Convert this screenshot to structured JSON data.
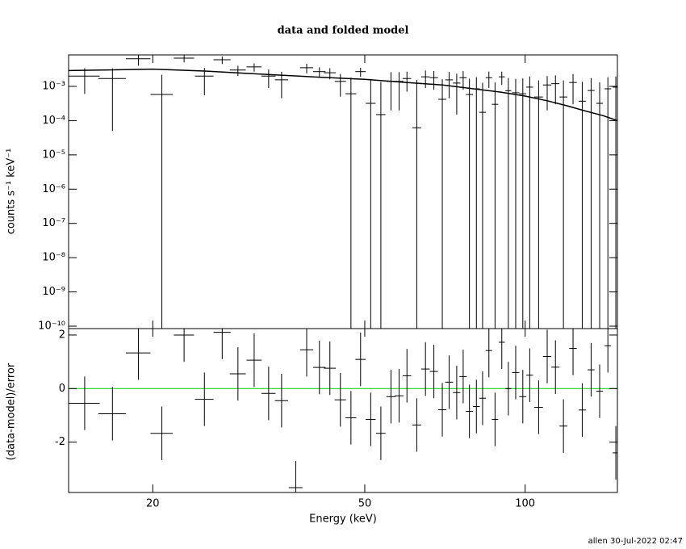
{
  "title": "data and folded model",
  "footer": "allen 30-Jul-2022 02:47",
  "chart_data": [
    {
      "type": "errorbar",
      "ylabel": "counts s⁻¹ keV⁻¹",
      "xlog": true,
      "ylog": true,
      "xlim": [
        13.9,
        149
      ],
      "xticks": [
        20,
        50,
        100
      ],
      "ylim": [
        8.5e-11,
        0.0083
      ],
      "yticks": [
        {
          "value": 0.001,
          "label": "10⁻³"
        },
        {
          "value": 0.0001,
          "label": "10⁻⁴"
        },
        {
          "value": 1e-05,
          "label": "10⁻⁵"
        },
        {
          "value": 1e-06,
          "label": "10⁻⁶"
        },
        {
          "value": 1e-07,
          "label": "10⁻⁷"
        },
        {
          "value": 1e-08,
          "label": "10⁻⁸"
        },
        {
          "value": 1e-09,
          "label": "10⁻⁹"
        },
        {
          "value": 1e-10,
          "label": "10⁻¹⁰"
        }
      ],
      "series": [
        {
          "color": "#000000",
          "x": [
            14.9,
            16.8,
            18.8,
            20.8,
            22.9,
            25.0,
            27.0,
            28.9,
            31.0,
            33.0,
            34.9,
            37.1,
            38.9,
            41.1,
            43.0,
            45.0,
            47.1,
            49.1,
            51.3,
            53.6,
            56.0,
            58.0,
            60.0,
            62.6,
            65.0,
            67.4,
            69.9,
            72.0,
            74.4,
            76.5,
            78.6,
            81.0,
            83.2,
            85.5,
            87.8,
            90.4,
            93.0,
            96.0,
            99.0,
            102,
            106,
            110,
            114,
            118,
            123,
            128,
            133,
            138,
            143,
            148
          ],
          "x_err": [
            1.0,
            1.0,
            1.0,
            1.0,
            1.0,
            1.0,
            1.0,
            1.0,
            1.0,
            1.0,
            1.0,
            1.1,
            1.1,
            1.1,
            1.1,
            1.1,
            1.1,
            1.1,
            1.1,
            1.1,
            1.1,
            1.1,
            1.1,
            1.2,
            1.2,
            1.2,
            1.2,
            1.2,
            1.2,
            1.2,
            1.2,
            1.2,
            1.2,
            1.2,
            1.2,
            1.2,
            1.2,
            1.5,
            1.5,
            1.5,
            2.0,
            2.0,
            2.0,
            2.0,
            2.0,
            2.0,
            2.0,
            2.0,
            2.0,
            2.0
          ],
          "values": [
            0.002,
            0.0017,
            0.0064,
            0.00058,
            0.0067,
            0.002,
            0.006,
            0.003,
            0.0037,
            0.002,
            0.00155,
            null,
            0.0035,
            0.0027,
            0.0025,
            0.0014,
            0.00061,
            0.0027,
            0.00032,
            0.00015,
            0.0014,
            0.0014,
            0.0017,
            6.2e-05,
            0.0019,
            0.0018,
            0.00042,
            0.00155,
            0.00125,
            0.0018,
            0.00058,
            0.00085,
            0.000175,
            0.0018,
            0.0003,
            0.0019,
            0.00075,
            0.00065,
            0.00061,
            0.00095,
            0.00049,
            0.0011,
            0.0012,
            0.00049,
            0.0013,
            0.00037,
            0.00076,
            0.00032,
            0.00085,
            0.00095
          ],
          "errors": [
            0.0014,
            0.00165,
            0.0024,
            0.0016,
            0.0017,
            0.00145,
            0.0015,
            0.001,
            0.001,
            0.0011,
            0.0011,
            null,
            0.0011,
            0.0009,
            0.0009,
            0.0009,
            0.0012,
            0.0008,
            0.0013,
            0.0012,
            0.0012,
            0.0012,
            0.001,
            0.0015,
            0.001,
            0.001,
            0.0012,
            0.0011,
            0.0011,
            0.001,
            0.0011,
            0.001,
            0.0011,
            0.0009,
            0.001,
            0.0008,
            0.001,
            0.001,
            0.0011,
            0.001,
            0.001,
            0.0009,
            0.0009,
            0.001,
            0.001,
            0.001,
            0.001,
            0.001,
            0.001,
            0.001
          ]
        }
      ],
      "model": {
        "color": "#000000",
        "x": [
          13.9,
          16,
          20,
          25,
          30,
          40,
          50,
          60,
          70,
          80,
          90,
          100,
          110,
          120,
          130,
          140,
          149
        ],
        "values": [
          0.0029,
          0.003,
          0.0032,
          0.0028,
          0.0024,
          0.0019,
          0.0016,
          0.0013,
          0.0011,
          0.00085,
          0.00068,
          0.00052,
          0.00038,
          0.00027,
          0.00019,
          0.00014,
          0.0001
        ]
      }
    },
    {
      "type": "residual",
      "ylabel": "(data-model)/error",
      "xlabel": "Energy (keV)",
      "xlog": true,
      "xlim": [
        13.9,
        149
      ],
      "xticks": [
        20,
        50,
        100
      ],
      "ylim": [
        -3.88,
        2.24
      ],
      "yticks": [
        -2,
        0,
        2
      ],
      "reference_line": 0,
      "reference_color": "#00cc00",
      "series": [
        {
          "color": "#000000",
          "x": [
            14.9,
            16.8,
            18.8,
            20.8,
            22.9,
            25.0,
            27.0,
            28.9,
            31.0,
            33.0,
            34.9,
            37.1,
            38.9,
            41.1,
            43.0,
            45.0,
            47.1,
            49.1,
            51.3,
            53.6,
            56.0,
            58.0,
            60.0,
            62.6,
            65.0,
            67.4,
            69.9,
            72.0,
            74.4,
            76.5,
            78.6,
            81.0,
            83.2,
            85.5,
            87.8,
            90.4,
            93.0,
            96.0,
            99.0,
            102,
            106,
            110,
            114,
            118,
            123,
            128,
            133,
            138,
            143,
            148
          ],
          "x_err": [
            1.0,
            1.0,
            1.0,
            1.0,
            1.0,
            1.0,
            1.0,
            1.0,
            1.0,
            1.0,
            1.0,
            1.1,
            1.1,
            1.1,
            1.1,
            1.1,
            1.1,
            1.1,
            1.1,
            1.1,
            1.1,
            1.1,
            1.1,
            1.2,
            1.2,
            1.2,
            1.2,
            1.2,
            1.2,
            1.2,
            1.2,
            1.2,
            1.2,
            1.2,
            1.2,
            1.2,
            1.2,
            1.5,
            1.5,
            1.5,
            2.0,
            2.0,
            2.0,
            2.0,
            2.0,
            2.0,
            2.0,
            2.0,
            2.0,
            2.0
          ],
          "values": [
            -0.55,
            -0.94,
            1.33,
            -1.67,
            2.0,
            -0.4,
            2.1,
            0.55,
            1.06,
            -0.18,
            -0.45,
            -3.7,
            1.45,
            0.79,
            0.76,
            -0.42,
            -1.09,
            1.09,
            -1.15,
            -1.67,
            -0.3,
            -0.27,
            0.48,
            -1.36,
            0.73,
            0.64,
            -0.79,
            0.24,
            -0.15,
            0.45,
            -0.85,
            -0.67,
            -0.36,
            1.42,
            -1.15,
            1.73,
            0,
            0.6,
            -0.3,
            0.5,
            -0.7,
            1.2,
            0.8,
            -1.4,
            1.5,
            -0.8,
            0.7,
            -0.1,
            1.6,
            -2.4
          ],
          "errors": [
            1,
            1,
            1,
            1,
            1,
            1,
            1,
            1,
            1,
            1,
            1,
            1,
            1,
            1,
            1,
            1,
            1,
            1,
            1,
            1,
            1,
            1,
            1,
            1,
            1,
            1,
            1,
            1,
            1,
            1,
            1,
            1,
            1,
            1,
            1,
            1,
            1,
            1,
            1,
            1,
            1,
            1,
            1,
            1,
            1,
            1,
            1,
            1,
            1,
            1
          ]
        }
      ]
    }
  ]
}
